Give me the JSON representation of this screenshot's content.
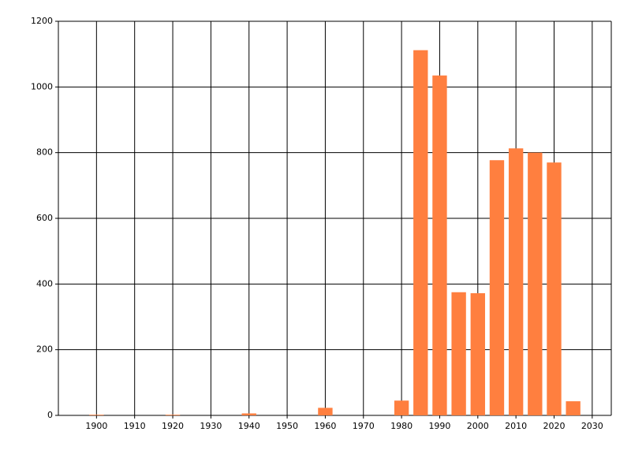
{
  "chart_data": {
    "type": "bar",
    "x": [
      1900,
      1920,
      1940,
      1960,
      1980,
      1985,
      1990,
      1995,
      2000,
      2005,
      2010,
      2015,
      2020,
      2025
    ],
    "values": [
      2,
      2,
      6,
      23,
      45,
      1112,
      1035,
      375,
      372,
      777,
      813,
      800,
      770,
      43
    ],
    "color": "#ff7f3f",
    "xlim": [
      1890,
      2035
    ],
    "xticks": [
      1900,
      1910,
      1920,
      1930,
      1940,
      1950,
      1960,
      1970,
      1980,
      1990,
      2000,
      2010,
      2020,
      2030
    ],
    "ylim": [
      0,
      1200
    ],
    "yticks": [
      0,
      200,
      400,
      600,
      800,
      1000,
      1200
    ],
    "grid": true
  }
}
